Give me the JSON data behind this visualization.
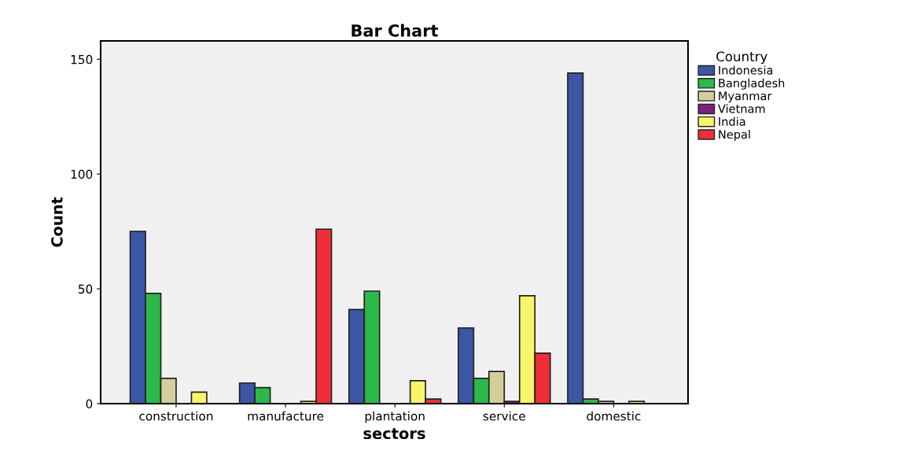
{
  "chart_data": {
    "type": "bar",
    "title": "Bar Chart",
    "xlabel": "sectors",
    "ylabel": "Count",
    "legend_title": "Country",
    "categories": [
      "construction",
      "manufacture",
      "plantation",
      "service",
      "domestic"
    ],
    "series": [
      {
        "name": "Indonesia",
        "color": "#3c56a6",
        "values": [
          75,
          9,
          41,
          33,
          144
        ]
      },
      {
        "name": "Bangladesh",
        "color": "#2db84a",
        "values": [
          48,
          7,
          49,
          11,
          2
        ]
      },
      {
        "name": "Myanmar",
        "color": "#d4cf9a",
        "values": [
          11,
          0,
          0,
          14,
          1
        ]
      },
      {
        "name": "Vietnam",
        "color": "#7a1f7f",
        "values": [
          0,
          0,
          0,
          1,
          0
        ]
      },
      {
        "name": "India",
        "color": "#f8f56a",
        "values": [
          5,
          1,
          10,
          47,
          1
        ]
      },
      {
        "name": "Nepal",
        "color": "#ee2e39",
        "values": [
          0,
          76,
          2,
          22,
          0
        ]
      }
    ],
    "ylim": [
      0,
      158
    ],
    "yticks": [
      0,
      50,
      100,
      150
    ],
    "grid": false,
    "legend": "right"
  }
}
